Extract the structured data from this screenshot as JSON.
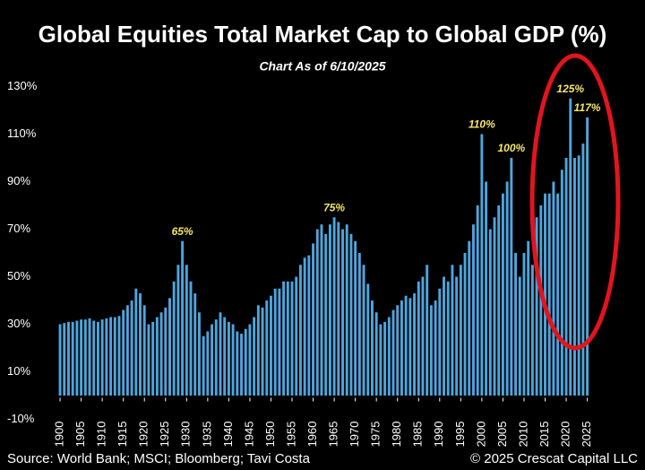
{
  "chart_data": {
    "type": "bar",
    "title": "Global Equities Total Market Cap to Global GDP (%)",
    "subtitle": "Chart As of 6/10/2025",
    "source": "Source: World Bank; MSCI; Bloomberg; Tavi Costa",
    "copyright": "© 2025 Crescat Capital LLC",
    "color": "#4ea5dc",
    "label_color": "#f3e66a",
    "x": [
      1900,
      1901,
      1902,
      1903,
      1904,
      1905,
      1906,
      1907,
      1908,
      1909,
      1910,
      1911,
      1912,
      1913,
      1914,
      1915,
      1916,
      1917,
      1918,
      1919,
      1920,
      1921,
      1922,
      1923,
      1924,
      1925,
      1926,
      1927,
      1928,
      1929,
      1930,
      1931,
      1932,
      1933,
      1934,
      1935,
      1936,
      1937,
      1938,
      1939,
      1940,
      1941,
      1942,
      1943,
      1944,
      1945,
      1946,
      1947,
      1948,
      1949,
      1950,
      1951,
      1952,
      1953,
      1954,
      1955,
      1956,
      1957,
      1958,
      1959,
      1960,
      1961,
      1962,
      1963,
      1964,
      1965,
      1966,
      1967,
      1968,
      1969,
      1970,
      1971,
      1972,
      1973,
      1974,
      1975,
      1976,
      1977,
      1978,
      1979,
      1980,
      1981,
      1982,
      1983,
      1984,
      1985,
      1986,
      1987,
      1988,
      1989,
      1990,
      1991,
      1992,
      1993,
      1994,
      1995,
      1996,
      1997,
      1998,
      1999,
      2000,
      2001,
      2002,
      2003,
      2004,
      2005,
      2006,
      2007,
      2008,
      2009,
      2010,
      2011,
      2012,
      2013,
      2014,
      2015,
      2016,
      2017,
      2018,
      2019,
      2020,
      2021,
      2022,
      2023,
      2024,
      2025
    ],
    "values": [
      30,
      30.5,
      31,
      31,
      31.5,
      32,
      32,
      32.5,
      31.5,
      31,
      32,
      32.5,
      33,
      33,
      33.5,
      36,
      38,
      40,
      45,
      43,
      38,
      30,
      31,
      33,
      35,
      37,
      41,
      48,
      55,
      65,
      55,
      48,
      43,
      35,
      25,
      27,
      30,
      32,
      35,
      33,
      31,
      30,
      27,
      26,
      28,
      30,
      33,
      38,
      37,
      40,
      42,
      45,
      45,
      48,
      48,
      48,
      50,
      55,
      58,
      59,
      64,
      70,
      72,
      68,
      72,
      75,
      73,
      70,
      72,
      68,
      65,
      60,
      55,
      47,
      40,
      35,
      30,
      31,
      33,
      36,
      38,
      40,
      42,
      41,
      43,
      48,
      50,
      55,
      38,
      40,
      45,
      50,
      48,
      55,
      50,
      55,
      60,
      65,
      72,
      80,
      110,
      90,
      70,
      75,
      80,
      85,
      90,
      100,
      60,
      50,
      60,
      65,
      55,
      75,
      80,
      85,
      85,
      90,
      85,
      95,
      100,
      125,
      100,
      101,
      106,
      117
    ],
    "value_labels": [
      null,
      null,
      null,
      null,
      null,
      null,
      null,
      null,
      null,
      null,
      null,
      null,
      null,
      null,
      null,
      null,
      null,
      null,
      null,
      null,
      null,
      null,
      null,
      null,
      null,
      null,
      null,
      null,
      null,
      "65%",
      null,
      null,
      null,
      null,
      null,
      null,
      null,
      null,
      null,
      null,
      null,
      null,
      null,
      null,
      null,
      null,
      null,
      null,
      null,
      null,
      null,
      null,
      null,
      null,
      null,
      null,
      null,
      null,
      null,
      null,
      null,
      null,
      null,
      null,
      null,
      "75%",
      null,
      null,
      null,
      null,
      null,
      null,
      null,
      null,
      null,
      null,
      null,
      null,
      null,
      null,
      null,
      null,
      null,
      null,
      null,
      null,
      null,
      null,
      null,
      null,
      null,
      null,
      null,
      null,
      null,
      null,
      null,
      null,
      null,
      null,
      "110%",
      null,
      null,
      null,
      null,
      null,
      null,
      "100%",
      null,
      null,
      null,
      null,
      null,
      null,
      null,
      null,
      null,
      null,
      null,
      null,
      null,
      "125%",
      null,
      null,
      null,
      "117%"
    ],
    "xlim": [
      1898.5,
      2027
    ],
    "xticks": [
      1900,
      1905,
      1910,
      1915,
      1920,
      1925,
      1930,
      1935,
      1940,
      1945,
      1950,
      1955,
      1960,
      1965,
      1970,
      1975,
      1980,
      1985,
      1990,
      1995,
      2000,
      2005,
      2010,
      2015,
      2020,
      2025
    ],
    "ylim": [
      -10,
      130
    ],
    "yticks": [
      {
        "value": -10,
        "label": "-10%"
      },
      {
        "value": 10,
        "label": "10%"
      },
      {
        "value": 30,
        "label": "30%"
      },
      {
        "value": 50,
        "label": "50%"
      },
      {
        "value": 70,
        "label": "70%"
      },
      {
        "value": 90,
        "label": "90%"
      },
      {
        "value": 110,
        "label": "110%"
      },
      {
        "value": 130,
        "label": "130%"
      }
    ],
    "grid": false
  }
}
